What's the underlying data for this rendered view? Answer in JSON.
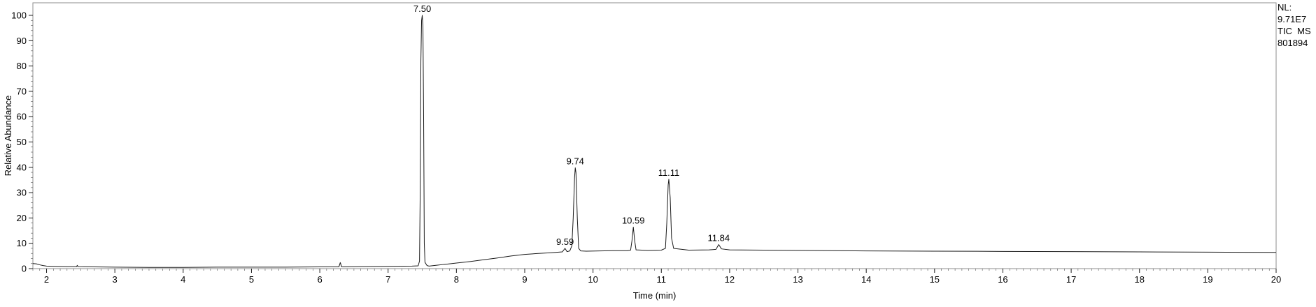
{
  "chart_data": {
    "type": "line",
    "title": "",
    "xlabel": "Time (min)",
    "ylabel": "Relative Abundance",
    "xlim": [
      1.8,
      20
    ],
    "ylim": [
      0,
      100
    ],
    "x_ticks": [
      2,
      3,
      4,
      5,
      6,
      7,
      8,
      9,
      10,
      11,
      12,
      13,
      14,
      15,
      16,
      17,
      18,
      19,
      20
    ],
    "y_ticks": [
      0,
      10,
      20,
      30,
      40,
      50,
      60,
      70,
      80,
      90,
      100
    ],
    "grid": false,
    "line_color": "#1a1a1a",
    "series": [
      {
        "values": [
          [
            1.8,
            2.0
          ],
          [
            1.85,
            1.9
          ],
          [
            1.9,
            1.5
          ],
          [
            1.95,
            1.2
          ],
          [
            2.0,
            1.0
          ],
          [
            2.1,
            0.9
          ],
          [
            2.3,
            0.8
          ],
          [
            2.44,
            0.8
          ],
          [
            2.45,
            1.3
          ],
          [
            2.46,
            0.8
          ],
          [
            2.7,
            0.7
          ],
          [
            3.0,
            0.6
          ],
          [
            3.5,
            0.5
          ],
          [
            4.0,
            0.5
          ],
          [
            4.5,
            0.6
          ],
          [
            5.0,
            0.6
          ],
          [
            5.5,
            0.6
          ],
          [
            6.0,
            0.7
          ],
          [
            6.28,
            0.7
          ],
          [
            6.3,
            2.4
          ],
          [
            6.32,
            0.7
          ],
          [
            6.6,
            0.8
          ],
          [
            7.0,
            0.9
          ],
          [
            7.35,
            1.0
          ],
          [
            7.44,
            1.1
          ],
          [
            7.46,
            3.0
          ],
          [
            7.47,
            30.0
          ],
          [
            7.48,
            82.0
          ],
          [
            7.49,
            98.0
          ],
          [
            7.5,
            100.0
          ],
          [
            7.51,
            96.0
          ],
          [
            7.52,
            60.0
          ],
          [
            7.53,
            10.0
          ],
          [
            7.54,
            2.5
          ],
          [
            7.57,
            1.2
          ],
          [
            7.6,
            1.0
          ],
          [
            7.7,
            1.3
          ],
          [
            7.8,
            1.6
          ],
          [
            7.9,
            1.9
          ],
          [
            8.0,
            2.2
          ],
          [
            8.2,
            2.8
          ],
          [
            8.4,
            3.5
          ],
          [
            8.6,
            4.2
          ],
          [
            8.8,
            5.0
          ],
          [
            9.0,
            5.6
          ],
          [
            9.2,
            6.0
          ],
          [
            9.4,
            6.3
          ],
          [
            9.55,
            6.6
          ],
          [
            9.59,
            8.0
          ],
          [
            9.62,
            6.7
          ],
          [
            9.66,
            7.0
          ],
          [
            9.69,
            9.0
          ],
          [
            9.71,
            20.0
          ],
          [
            9.73,
            36.0
          ],
          [
            9.74,
            39.8
          ],
          [
            9.75,
            38.0
          ],
          [
            9.77,
            20.0
          ],
          [
            9.79,
            8.0
          ],
          [
            9.82,
            7.0
          ],
          [
            9.9,
            6.9
          ],
          [
            10.1,
            7.0
          ],
          [
            10.3,
            7.1
          ],
          [
            10.5,
            7.1
          ],
          [
            10.55,
            7.3
          ],
          [
            10.57,
            11.0
          ],
          [
            10.59,
            16.4
          ],
          [
            10.61,
            11.0
          ],
          [
            10.63,
            7.4
          ],
          [
            10.8,
            7.2
          ],
          [
            11.0,
            7.3
          ],
          [
            11.06,
            8.0
          ],
          [
            11.08,
            18.0
          ],
          [
            11.1,
            33.0
          ],
          [
            11.11,
            35.3
          ],
          [
            11.13,
            28.0
          ],
          [
            11.15,
            12.0
          ],
          [
            11.18,
            8.0
          ],
          [
            11.4,
            7.3
          ],
          [
            11.7,
            7.4
          ],
          [
            11.8,
            7.6
          ],
          [
            11.84,
            9.5
          ],
          [
            11.88,
            7.8
          ],
          [
            12.0,
            7.4
          ],
          [
            13.0,
            7.2
          ],
          [
            14.0,
            7.0
          ],
          [
            15.0,
            6.9
          ],
          [
            16.0,
            6.8
          ],
          [
            17.0,
            6.7
          ],
          [
            18.0,
            6.6
          ],
          [
            19.0,
            6.5
          ],
          [
            20.0,
            6.4
          ]
        ]
      }
    ],
    "annotations": [
      {
        "x": 7.5,
        "y": 100.0,
        "label": "7.50"
      },
      {
        "x": 9.59,
        "y": 8.0,
        "label": "9.59"
      },
      {
        "x": 9.74,
        "y": 39.8,
        "label": "9.74"
      },
      {
        "x": 10.59,
        "y": 16.4,
        "label": "10.59"
      },
      {
        "x": 11.11,
        "y": 35.3,
        "label": "11.11"
      },
      {
        "x": 11.84,
        "y": 9.5,
        "label": "11.84"
      }
    ]
  },
  "info": {
    "line1": "NL:",
    "line2": "9.71E7",
    "line3": "TIC  MS",
    "line4": "801894"
  }
}
